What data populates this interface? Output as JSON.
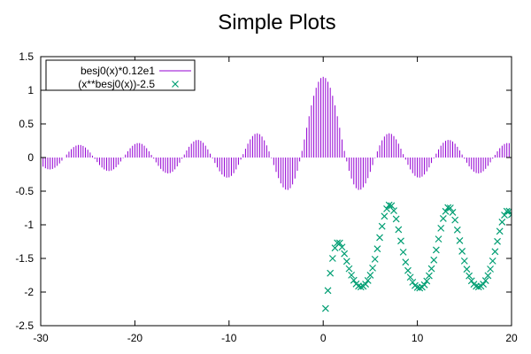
{
  "chart_data": {
    "type": "line",
    "title": "Simple Plots",
    "xlabel": "",
    "ylabel": "",
    "xlim": [
      -30,
      20
    ],
    "ylim": [
      -2.5,
      1.5
    ],
    "x_ticks": [
      -30,
      -20,
      -10,
      0,
      10,
      20
    ],
    "y_ticks": [
      -2.5,
      -2,
      -1.5,
      -1,
      -0.5,
      0,
      0.5,
      1,
      1.5
    ],
    "x_tick_labels": [
      "-30",
      "-20",
      "-10",
      "0",
      "10",
      "20"
    ],
    "y_tick_labels": [
      "-2.5",
      "-2",
      "-1.5",
      "-1",
      "-0.5",
      "0",
      "0.5",
      "1",
      "1.5"
    ],
    "grid": false,
    "legend": {
      "position": "top-left",
      "boxed": true
    },
    "series": [
      {
        "name": "besj0(x)*0.12e1",
        "style": "impulses",
        "color": "#9400d3",
        "x_range": [
          -30,
          20
        ],
        "sample_count": 201,
        "formula": "besj0(x)*0.12e1"
      },
      {
        "name": "(x**besj0(x))-2.5",
        "style": "points",
        "marker": "cross",
        "color": "#009e73",
        "x_range": [
          0.25,
          20
        ],
        "x_step": 0.25,
        "formula": "(x**besj0(x))-2.5"
      }
    ]
  }
}
